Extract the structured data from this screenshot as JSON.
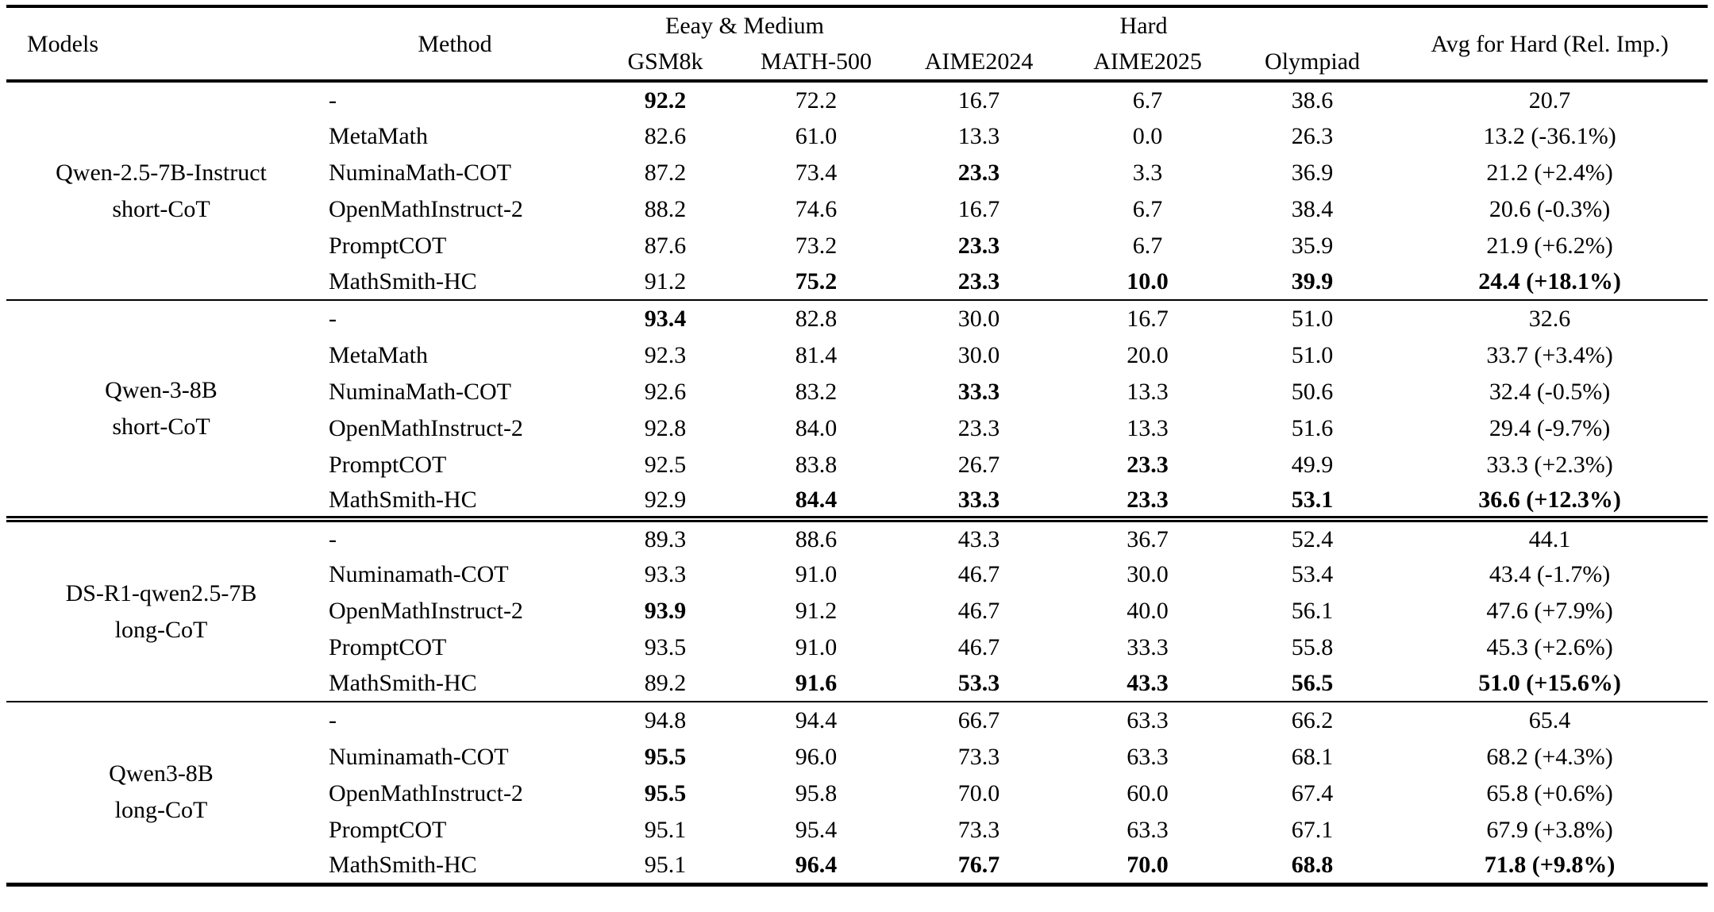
{
  "table": {
    "header": {
      "models": "Models",
      "method": "Method",
      "group_easy": "Eeay & Medium",
      "group_hard": "Hard",
      "avg": "Avg for Hard (Rel. Imp.)",
      "cols": [
        "GSM8k",
        "MATH-500",
        "AIME2024",
        "AIME2025",
        "Olympiad"
      ]
    },
    "groups": [
      {
        "model_lines": [
          "Qwen-2.5-7B-Instruct",
          "short-CoT"
        ],
        "rule_above": "none",
        "rows": [
          {
            "method": "-",
            "cells": [
              {
                "v": "92.2",
                "b": true
              },
              {
                "v": "72.2",
                "b": false
              },
              {
                "v": "16.7",
                "b": false
              },
              {
                "v": "6.7",
                "b": false
              },
              {
                "v": "38.6",
                "b": false
              },
              {
                "v": "20.7",
                "b": false
              }
            ]
          },
          {
            "method": "MetaMath",
            "cells": [
              {
                "v": "82.6",
                "b": false
              },
              {
                "v": "61.0",
                "b": false
              },
              {
                "v": "13.3",
                "b": false
              },
              {
                "v": "0.0",
                "b": false
              },
              {
                "v": "26.3",
                "b": false
              },
              {
                "v": "13.2 (-36.1%)",
                "b": false
              }
            ]
          },
          {
            "method": "NuminaMath-COT",
            "cells": [
              {
                "v": "87.2",
                "b": false
              },
              {
                "v": "73.4",
                "b": false
              },
              {
                "v": "23.3",
                "b": true
              },
              {
                "v": "3.3",
                "b": false
              },
              {
                "v": "36.9",
                "b": false
              },
              {
                "v": "21.2 (+2.4%)",
                "b": false
              }
            ]
          },
          {
            "method": "OpenMathInstruct-2",
            "cells": [
              {
                "v": "88.2",
                "b": false
              },
              {
                "v": "74.6",
                "b": false
              },
              {
                "v": "16.7",
                "b": false
              },
              {
                "v": "6.7",
                "b": false
              },
              {
                "v": "38.4",
                "b": false
              },
              {
                "v": "20.6 (-0.3%)",
                "b": false
              }
            ]
          },
          {
            "method": "PromptCOT",
            "cells": [
              {
                "v": "87.6",
                "b": false
              },
              {
                "v": "73.2",
                "b": false
              },
              {
                "v": "23.3",
                "b": true
              },
              {
                "v": "6.7",
                "b": false
              },
              {
                "v": "35.9",
                "b": false
              },
              {
                "v": "21.9 (+6.2%)",
                "b": false
              }
            ]
          },
          {
            "method": "MathSmith-HC",
            "cells": [
              {
                "v": "91.2",
                "b": false
              },
              {
                "v": "75.2",
                "b": true
              },
              {
                "v": "23.3",
                "b": true
              },
              {
                "v": "10.0",
                "b": true
              },
              {
                "v": "39.9",
                "b": true
              },
              {
                "v": "24.4 (+18.1%)",
                "b": true
              }
            ]
          }
        ]
      },
      {
        "model_lines": [
          "Qwen-3-8B",
          "short-CoT"
        ],
        "rule_above": "single",
        "rows": [
          {
            "method": "-",
            "cells": [
              {
                "v": "93.4",
                "b": true
              },
              {
                "v": "82.8",
                "b": false
              },
              {
                "v": "30.0",
                "b": false
              },
              {
                "v": "16.7",
                "b": false
              },
              {
                "v": "51.0",
                "b": false
              },
              {
                "v": "32.6",
                "b": false
              }
            ]
          },
          {
            "method": "MetaMath",
            "cells": [
              {
                "v": "92.3",
                "b": false
              },
              {
                "v": "81.4",
                "b": false
              },
              {
                "v": "30.0",
                "b": false
              },
              {
                "v": "20.0",
                "b": false
              },
              {
                "v": "51.0",
                "b": false
              },
              {
                "v": "33.7 (+3.4%)",
                "b": false
              }
            ]
          },
          {
            "method": "NuminaMath-COT",
            "cells": [
              {
                "v": "92.6",
                "b": false
              },
              {
                "v": "83.2",
                "b": false
              },
              {
                "v": "33.3",
                "b": true
              },
              {
                "v": "13.3",
                "b": false
              },
              {
                "v": "50.6",
                "b": false
              },
              {
                "v": "32.4 (-0.5%)",
                "b": false
              }
            ]
          },
          {
            "method": "OpenMathInstruct-2",
            "cells": [
              {
                "v": "92.8",
                "b": false
              },
              {
                "v": "84.0",
                "b": false
              },
              {
                "v": "23.3",
                "b": false
              },
              {
                "v": "13.3",
                "b": false
              },
              {
                "v": "51.6",
                "b": false
              },
              {
                "v": "29.4 (-9.7%)",
                "b": false
              }
            ]
          },
          {
            "method": "PromptCOT",
            "cells": [
              {
                "v": "92.5",
                "b": false
              },
              {
                "v": "83.8",
                "b": false
              },
              {
                "v": "26.7",
                "b": false
              },
              {
                "v": "23.3",
                "b": true
              },
              {
                "v": "49.9",
                "b": false
              },
              {
                "v": "33.3 (+2.3%)",
                "b": false
              }
            ]
          },
          {
            "method": "MathSmith-HC",
            "cells": [
              {
                "v": "92.9",
                "b": false
              },
              {
                "v": "84.4",
                "b": true
              },
              {
                "v": "33.3",
                "b": true
              },
              {
                "v": "23.3",
                "b": true
              },
              {
                "v": "53.1",
                "b": true
              },
              {
                "v": "36.6 (+12.3%)",
                "b": true
              }
            ]
          }
        ]
      },
      {
        "model_lines": [
          "DS-R1-qwen2.5-7B",
          "long-CoT"
        ],
        "rule_above": "double",
        "rows": [
          {
            "method": "-",
            "cells": [
              {
                "v": "89.3",
                "b": false
              },
              {
                "v": "88.6",
                "b": false
              },
              {
                "v": "43.3",
                "b": false
              },
              {
                "v": "36.7",
                "b": false
              },
              {
                "v": "52.4",
                "b": false
              },
              {
                "v": "44.1",
                "b": false
              }
            ]
          },
          {
            "method": "Numinamath-COT",
            "cells": [
              {
                "v": "93.3",
                "b": false
              },
              {
                "v": "91.0",
                "b": false
              },
              {
                "v": "46.7",
                "b": false
              },
              {
                "v": "30.0",
                "b": false
              },
              {
                "v": "53.4",
                "b": false
              },
              {
                "v": "43.4 (-1.7%)",
                "b": false
              }
            ]
          },
          {
            "method": "OpenMathInstruct-2",
            "cells": [
              {
                "v": "93.9",
                "b": true
              },
              {
                "v": "91.2",
                "b": false
              },
              {
                "v": "46.7",
                "b": false
              },
              {
                "v": "40.0",
                "b": false
              },
              {
                "v": "56.1",
                "b": false
              },
              {
                "v": "47.6 (+7.9%)",
                "b": false
              }
            ]
          },
          {
            "method": "PromptCOT",
            "cells": [
              {
                "v": "93.5",
                "b": false
              },
              {
                "v": "91.0",
                "b": false
              },
              {
                "v": "46.7",
                "b": false
              },
              {
                "v": "33.3",
                "b": false
              },
              {
                "v": "55.8",
                "b": false
              },
              {
                "v": "45.3 (+2.6%)",
                "b": false
              }
            ]
          },
          {
            "method": "MathSmith-HC",
            "cells": [
              {
                "v": "89.2",
                "b": false
              },
              {
                "v": "91.6",
                "b": true
              },
              {
                "v": "53.3",
                "b": true
              },
              {
                "v": "43.3",
                "b": true
              },
              {
                "v": "56.5",
                "b": true
              },
              {
                "v": "51.0 (+15.6%)",
                "b": true
              }
            ]
          }
        ]
      },
      {
        "model_lines": [
          "Qwen3-8B",
          "long-CoT"
        ],
        "rule_above": "single",
        "rows": [
          {
            "method": "-",
            "cells": [
              {
                "v": "94.8",
                "b": false
              },
              {
                "v": "94.4",
                "b": false
              },
              {
                "v": "66.7",
                "b": false
              },
              {
                "v": "63.3",
                "b": false
              },
              {
                "v": "66.2",
                "b": false
              },
              {
                "v": "65.4",
                "b": false
              }
            ]
          },
          {
            "method": "Numinamath-COT",
            "cells": [
              {
                "v": "95.5",
                "b": true
              },
              {
                "v": "96.0",
                "b": false
              },
              {
                "v": "73.3",
                "b": false
              },
              {
                "v": "63.3",
                "b": false
              },
              {
                "v": "68.1",
                "b": false
              },
              {
                "v": "68.2 (+4.3%)",
                "b": false
              }
            ]
          },
          {
            "method": "OpenMathInstruct-2",
            "cells": [
              {
                "v": "95.5",
                "b": true
              },
              {
                "v": "95.8",
                "b": false
              },
              {
                "v": "70.0",
                "b": false
              },
              {
                "v": "60.0",
                "b": false
              },
              {
                "v": "67.4",
                "b": false
              },
              {
                "v": "65.8 (+0.6%)",
                "b": false
              }
            ]
          },
          {
            "method": "PromptCOT",
            "cells": [
              {
                "v": "95.1",
                "b": false
              },
              {
                "v": "95.4",
                "b": false
              },
              {
                "v": "73.3",
                "b": false
              },
              {
                "v": "63.3",
                "b": false
              },
              {
                "v": "67.1",
                "b": false
              },
              {
                "v": "67.9 (+3.8%)",
                "b": false
              }
            ]
          },
          {
            "method": "MathSmith-HC",
            "cells": [
              {
                "v": "95.1",
                "b": false
              },
              {
                "v": "96.4",
                "b": true
              },
              {
                "v": "76.7",
                "b": true
              },
              {
                "v": "70.0",
                "b": true
              },
              {
                "v": "68.8",
                "b": true
              },
              {
                "v": "71.8 (+9.8%)",
                "b": true
              }
            ]
          }
        ]
      }
    ]
  }
}
